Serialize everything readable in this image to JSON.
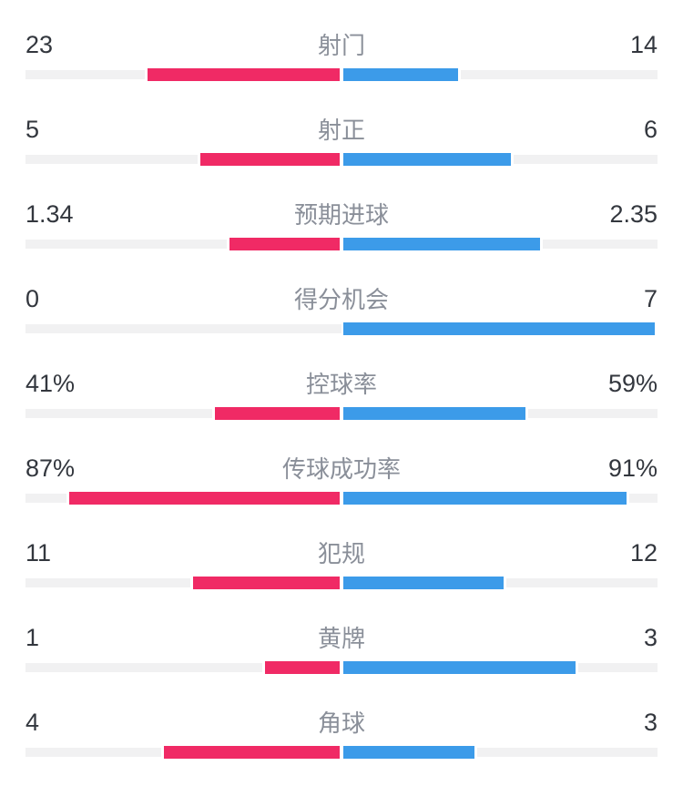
{
  "page": {
    "background": "#ffffff"
  },
  "colors": {
    "home_bar": "#f02a65",
    "away_bar": "#3c9be9",
    "track": "#f1f1f2",
    "label_text": "#8a8f99",
    "value_text": "#33373e"
  },
  "chart_data": {
    "type": "bar",
    "orientation": "horizontal-diverging",
    "legend_position": "none",
    "grid": false,
    "home_color": "#f02a65",
    "away_color": "#3c9be9",
    "rows": [
      {
        "label": "射门",
        "home": "23",
        "away": "14",
        "home_value": 23,
        "away_value": 14,
        "scale": "share"
      },
      {
        "label": "射正",
        "home": "5",
        "away": "6",
        "home_value": 5,
        "away_value": 6,
        "scale": "share"
      },
      {
        "label": "预期进球",
        "home": "1.34",
        "away": "2.35",
        "home_value": 1.34,
        "away_value": 2.35,
        "scale": "share"
      },
      {
        "label": "得分机会",
        "home": "0",
        "away": "7",
        "home_value": 0,
        "away_value": 7,
        "scale": "share"
      },
      {
        "label": "控球率",
        "home": "41%",
        "away": "59%",
        "home_value": 41,
        "away_value": 59,
        "scale": "percent"
      },
      {
        "label": "传球成功率",
        "home": "87%",
        "away": "91%",
        "home_value": 87,
        "away_value": 91,
        "scale": "percent"
      },
      {
        "label": "犯规",
        "home": "11",
        "away": "12",
        "home_value": 11,
        "away_value": 12,
        "scale": "share"
      },
      {
        "label": "黄牌",
        "home": "1",
        "away": "3",
        "home_value": 1,
        "away_value": 3,
        "scale": "share"
      },
      {
        "label": "角球",
        "home": "4",
        "away": "3",
        "home_value": 4,
        "away_value": 3,
        "scale": "share"
      }
    ]
  }
}
